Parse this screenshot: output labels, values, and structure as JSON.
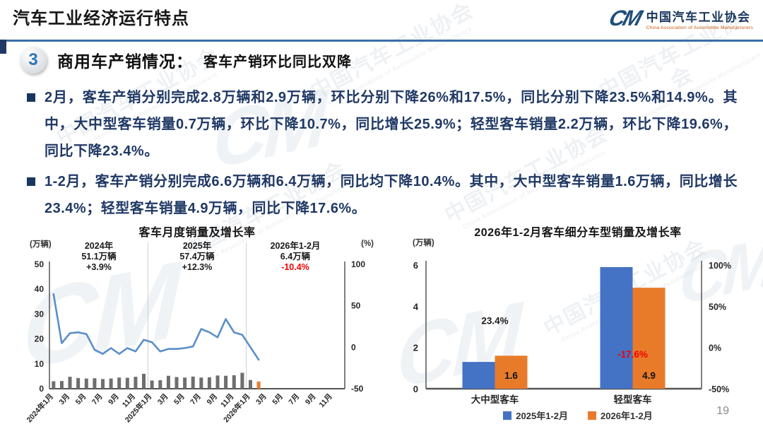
{
  "header": {
    "title": "汽车工业经济运行特点",
    "logo": {
      "mark": "CM",
      "name_cn": "中国汽车工业协会",
      "name_en": "China Association of Automobile Manufacturers"
    }
  },
  "section": {
    "number": "3",
    "heading": "商用车产销情况：",
    "subheading": "客车产销环比同比双降"
  },
  "bullets": [
    "2月，客车产销分别完成2.8万辆和2.9万辆，环比分别下降26%和17.5%，同比分别下降23.5%和14.9%。其中，大中型客车销量0.7万辆，环比下降10.7%，同比增长25.9%；轻型客车销量2.2万辆，环比下降19.6%，同比下降23.4%。",
    "1-2月，客车产销分别完成6.6万辆和6.4万辆，同比均下降10.4%。其中，大中型客车销量1.6万辆，同比增长23.4%；轻型客车销量4.9万辆，同比下降17.6%。"
  ],
  "watermark": {
    "text_cn": "中国汽车工业协会",
    "text_en": "China Association of Automobile Manufacturers",
    "mark": "CM"
  },
  "page_number": "19",
  "chart_data": [
    {
      "type": "bar+line",
      "title": "客车月度销量及增长率",
      "ylabel_left": "(万辆)",
      "ylabel_right": "(%)",
      "ylim_left": [
        0,
        50
      ],
      "yticks_left": [
        0,
        10,
        20,
        30,
        40,
        50
      ],
      "ylim_right": [
        -50,
        100
      ],
      "yticks_right": [
        -50,
        0,
        50,
        100
      ],
      "x_slots": 36,
      "x_tick_labels": [
        "2024年1月",
        "3月",
        "5月",
        "7月",
        "9月",
        "11月",
        "2025年1月",
        "3月",
        "5月",
        "7月",
        "9月",
        "11月",
        "2026年1月",
        "3月",
        "5月",
        "7月",
        "9月",
        "11月"
      ],
      "months": [
        "2024年1月",
        "2024年2月",
        "2024年3月",
        "2024年4月",
        "2024年5月",
        "2024年6月",
        "2024年7月",
        "2024年8月",
        "2024年9月",
        "2024年10月",
        "2024年11月",
        "2024年12月",
        "2025年1月",
        "2025年2月",
        "2025年3月",
        "2025年4月",
        "2025年5月",
        "2025年6月",
        "2025年7月",
        "2025年8月",
        "2025年9月",
        "2025年10月",
        "2025年11月",
        "2025年12月",
        "2026年1月",
        "2026年2月"
      ],
      "bars": {
        "axis": "left",
        "color_default": "#6E6E6E",
        "highlight_last_color": "#E87B2A",
        "values": [
          3.0,
          3.1,
          4.8,
          4.3,
          4.1,
          4.2,
          3.9,
          4.1,
          4.5,
          4.4,
          4.8,
          6.0,
          3.3,
          3.4,
          5.2,
          4.7,
          4.5,
          4.9,
          4.5,
          4.6,
          5.3,
          5.2,
          5.4,
          6.4,
          3.5,
          2.9
        ]
      },
      "line": {
        "axis": "right",
        "color": "#5B8FC7",
        "values": [
          64,
          5,
          17,
          18,
          16,
          -3,
          -8,
          -1,
          -8,
          -1,
          -5,
          9,
          6,
          -5,
          -2,
          -2,
          -1,
          1,
          22,
          18,
          12,
          34,
          18,
          15,
          0,
          -15
        ]
      },
      "annotations": [
        {
          "label": "2024年",
          "value": "51.1万辆",
          "growth": "+3.9%",
          "color": "#1a1a1a"
        },
        {
          "label": "2025年",
          "value": "57.4万辆",
          "growth": "+12.3%",
          "color": "#1a1a1a"
        },
        {
          "label": "2026年1-2月",
          "value": "6.4万辆",
          "growth": "-10.4%",
          "color": "#F20000"
        }
      ],
      "dividers_at_slot": [
        12,
        24
      ],
      "grid": false,
      "legend": "none"
    },
    {
      "type": "bar",
      "title": "2026年1-2月客车细分车型销量及增长率",
      "ylabel_left": "(万辆)",
      "categories": [
        "大中型客车",
        "轻型客车"
      ],
      "series": [
        {
          "name": "2025年1-2月",
          "color": "#4472C4",
          "values": [
            1.3,
            5.9
          ]
        },
        {
          "name": "2026年1-2月",
          "color": "#E87B2A",
          "values": [
            1.6,
            4.9
          ]
        }
      ],
      "bar_labels": [
        "1.6",
        "4.9"
      ],
      "growth_labels": [
        {
          "text": "23.4%",
          "value": 23.4,
          "color": "#1a1a1a"
        },
        {
          "text": "-17.6%",
          "value": -17.6,
          "color": "#F20000"
        }
      ],
      "ylim_left": [
        0,
        6
      ],
      "yticks_left": [
        0,
        2,
        4,
        6
      ],
      "ylim_right": [
        -50,
        100
      ],
      "yticks_right": [
        {
          "label": "100%",
          "value": 100
        },
        {
          "label": "50%",
          "value": 50
        },
        {
          "label": "0%",
          "value": 0
        },
        {
          "label": "-50%",
          "value": -50
        }
      ],
      "grid": false,
      "legend_position": "bottom"
    }
  ]
}
